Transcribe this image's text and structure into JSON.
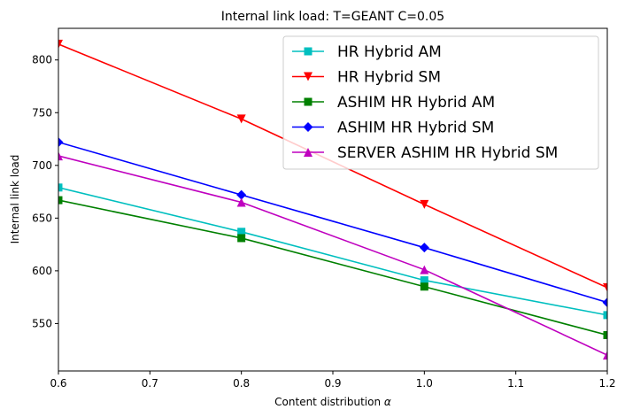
{
  "chart_data": {
    "type": "line",
    "title": "Internal link load: T=GEANT C=0.05",
    "xlabel": "Content distribution",
    "xlabel_symbol": "α",
    "ylabel": "Internal link load",
    "xlim": [
      0.6,
      1.2
    ],
    "ylim": [
      505,
      830
    ],
    "x_ticks": [
      "0.6",
      "0.7",
      "0.8",
      "0.9",
      "1.0",
      "1.1",
      "1.2"
    ],
    "y_ticks": [
      "550",
      "600",
      "650",
      "700",
      "750",
      "800"
    ],
    "x": [
      0.6,
      0.8,
      1.0,
      1.2
    ],
    "grid": false,
    "legend_position": "top-right",
    "series": [
      {
        "name": "HR Hybrid AM",
        "color": "#00bfbf",
        "marker": "square",
        "values": [
          679,
          637,
          591,
          558
        ]
      },
      {
        "name": "HR Hybrid SM",
        "color": "#ff0000",
        "marker": "triangle-down",
        "values": [
          815,
          744,
          663,
          584
        ]
      },
      {
        "name": "ASHIM HR Hybrid AM",
        "color": "#008000",
        "marker": "square",
        "values": [
          667,
          631,
          585,
          539
        ]
      },
      {
        "name": "ASHIM HR Hybrid SM",
        "color": "#0000ff",
        "marker": "diamond",
        "values": [
          722,
          672,
          622,
          570
        ]
      },
      {
        "name": "SERVER ASHIM HR Hybrid SM",
        "color": "#bf00bf",
        "marker": "triangle-up",
        "values": [
          709,
          665,
          601,
          520
        ]
      }
    ]
  }
}
